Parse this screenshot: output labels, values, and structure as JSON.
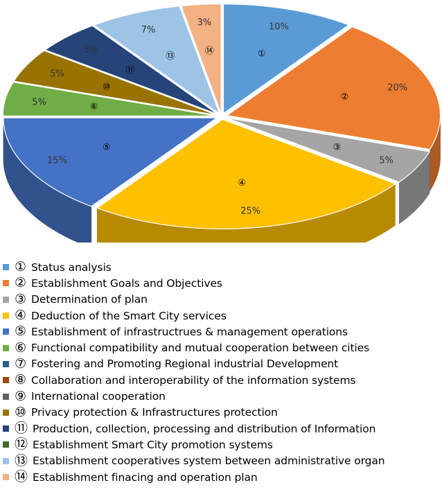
{
  "chart_data": {
    "type": "pie",
    "title": "",
    "style": "3d-exploded",
    "slices": [
      {
        "marker": "①",
        "label": "Status analysis",
        "value": 10,
        "value_label": "10%",
        "color": "#5B9BD5"
      },
      {
        "marker": "②",
        "label": "Establishment Goals and Objectives",
        "value": 20,
        "value_label": "20%",
        "color": "#ED7D31"
      },
      {
        "marker": "③",
        "label": "Determination of plan",
        "value": 5,
        "value_label": "5%",
        "color": "#A5A5A5"
      },
      {
        "marker": "④",
        "label": "Deduction of the Smart City services",
        "value": 25,
        "value_label": "25%",
        "color": "#FFC000"
      },
      {
        "marker": "⑤",
        "label": "Establishment of infrastructrues & management operations",
        "value": 15,
        "value_label": "15%",
        "color": "#4472C4"
      },
      {
        "marker": "⑥",
        "label": "Functional compatibility and mutual cooperation between cities",
        "value": 5,
        "value_label": "5%",
        "color": "#70AD47"
      },
      {
        "marker": "⑦",
        "label": "Fostering and Promoting Regional industrial Development",
        "value": 0,
        "value_label": "",
        "color": "#255E91"
      },
      {
        "marker": "⑧",
        "label": "Collaboration and interoperability of the information systems",
        "value": 0,
        "value_label": "",
        "color": "#9E480E"
      },
      {
        "marker": "⑨",
        "label": "International cooperation",
        "value": 0,
        "value_label": "",
        "color": "#636363"
      },
      {
        "marker": "⑩",
        "label": "Privacy protection & Infrastructures protection",
        "value": 5,
        "value_label": "5%",
        "color": "#997300"
      },
      {
        "marker": "⑪",
        "label": "Production, collection, processing and distribution of Information",
        "value": 5,
        "value_label": "5%",
        "color": "#264478"
      },
      {
        "marker": "⑫",
        "label": "Establishment Smart City promotion systems",
        "value": 0,
        "value_label": "",
        "color": "#43682B"
      },
      {
        "marker": "⑬",
        "label": "Establishment cooperatives system between administrative organ",
        "value": 7,
        "value_label": "7%",
        "color": "#9DC3E6"
      },
      {
        "marker": "⑭",
        "label": "Establishment finacing and operation plan",
        "value": 3,
        "value_label": "3%",
        "color": "#F4B183"
      }
    ],
    "legend_position": "bottom"
  }
}
